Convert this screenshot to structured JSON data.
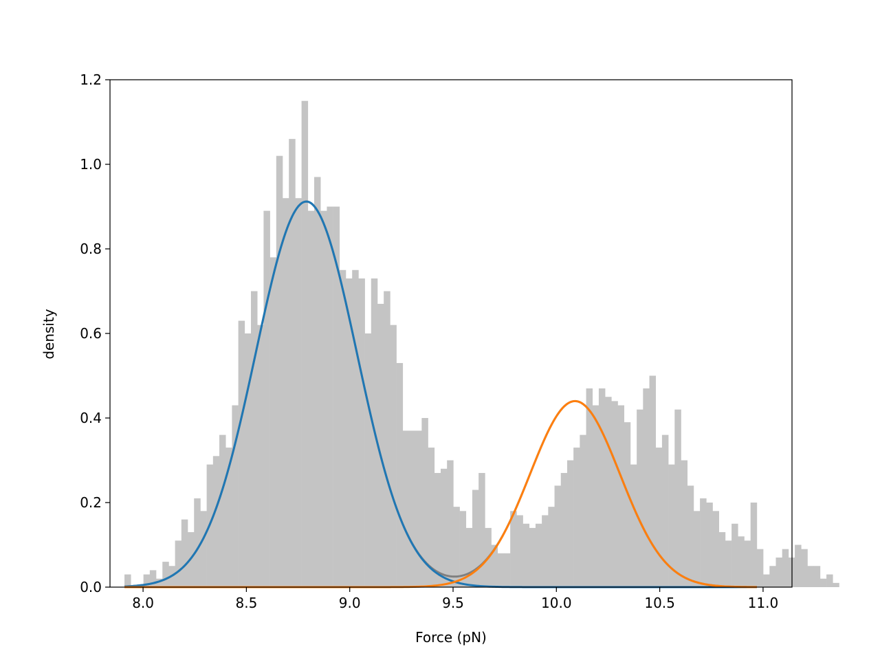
{
  "chart_data": {
    "type": "bar",
    "title": "",
    "xlabel": "Force (pN)",
    "ylabel": "density",
    "xlim": [
      7.84,
      11.14
    ],
    "ylim": [
      0.0,
      1.2
    ],
    "xticks": [
      8.0,
      8.5,
      9.0,
      9.5,
      10.0,
      10.5,
      11.0
    ],
    "xtick_labels": [
      "8.0",
      "8.5",
      "9.0",
      "9.5",
      "10.0",
      "10.5",
      "11.0"
    ],
    "yticks": [
      0.0,
      0.2,
      0.4,
      0.6,
      0.8,
      1.0,
      1.2
    ],
    "ytick_labels": [
      "0.0",
      "0.2",
      "0.4",
      "0.6",
      "0.8",
      "1.0",
      "1.2"
    ],
    "grid": false,
    "histogram": {
      "color": "#c4c4c4",
      "bin_start": 7.91,
      "bin_width": 0.0306,
      "values": [
        0.03,
        0.0,
        0.0,
        0.03,
        0.04,
        0.02,
        0.06,
        0.05,
        0.11,
        0.16,
        0.13,
        0.21,
        0.18,
        0.29,
        0.31,
        0.36,
        0.33,
        0.43,
        0.63,
        0.6,
        0.7,
        0.62,
        0.89,
        0.78,
        1.02,
        0.92,
        1.06,
        0.92,
        1.15,
        0.89,
        0.97,
        0.89,
        0.9,
        0.9,
        0.75,
        0.73,
        0.75,
        0.73,
        0.6,
        0.73,
        0.67,
        0.7,
        0.62,
        0.53,
        0.37,
        0.37,
        0.37,
        0.4,
        0.33,
        0.27,
        0.28,
        0.3,
        0.19,
        0.18,
        0.14,
        0.23,
        0.27,
        0.14,
        0.1,
        0.08,
        0.08,
        0.18,
        0.17,
        0.15,
        0.14,
        0.15,
        0.17,
        0.19,
        0.24,
        0.27,
        0.3,
        0.33,
        0.36,
        0.47,
        0.43,
        0.47,
        0.45,
        0.44,
        0.43,
        0.39,
        0.29,
        0.42,
        0.47,
        0.5,
        0.33,
        0.36,
        0.29,
        0.42,
        0.3,
        0.24,
        0.18,
        0.21,
        0.2,
        0.18,
        0.13,
        0.11,
        0.15,
        0.12,
        0.11,
        0.2,
        0.09,
        0.03,
        0.05,
        0.07,
        0.09,
        0.07,
        0.1,
        0.09,
        0.05,
        0.05,
        0.02,
        0.03,
        0.01,
        0.0,
        0.0,
        0.0,
        0.0,
        0.0,
        0.0,
        0.0,
        0.0,
        0.01
      ]
    },
    "series": [
      {
        "name": "",
        "kind": "gaussian",
        "color": "#1f77b4",
        "amplitude": 0.912,
        "mean": 8.79,
        "sigma": 0.245
      },
      {
        "name": "",
        "kind": "gaussian",
        "color": "#ff7f0e",
        "amplitude": 0.44,
        "mean": 10.09,
        "sigma": 0.218
      },
      {
        "name": "",
        "kind": "sum",
        "color": "#808080"
      }
    ],
    "curve_x_range": [
      7.91,
      10.97
    ]
  }
}
